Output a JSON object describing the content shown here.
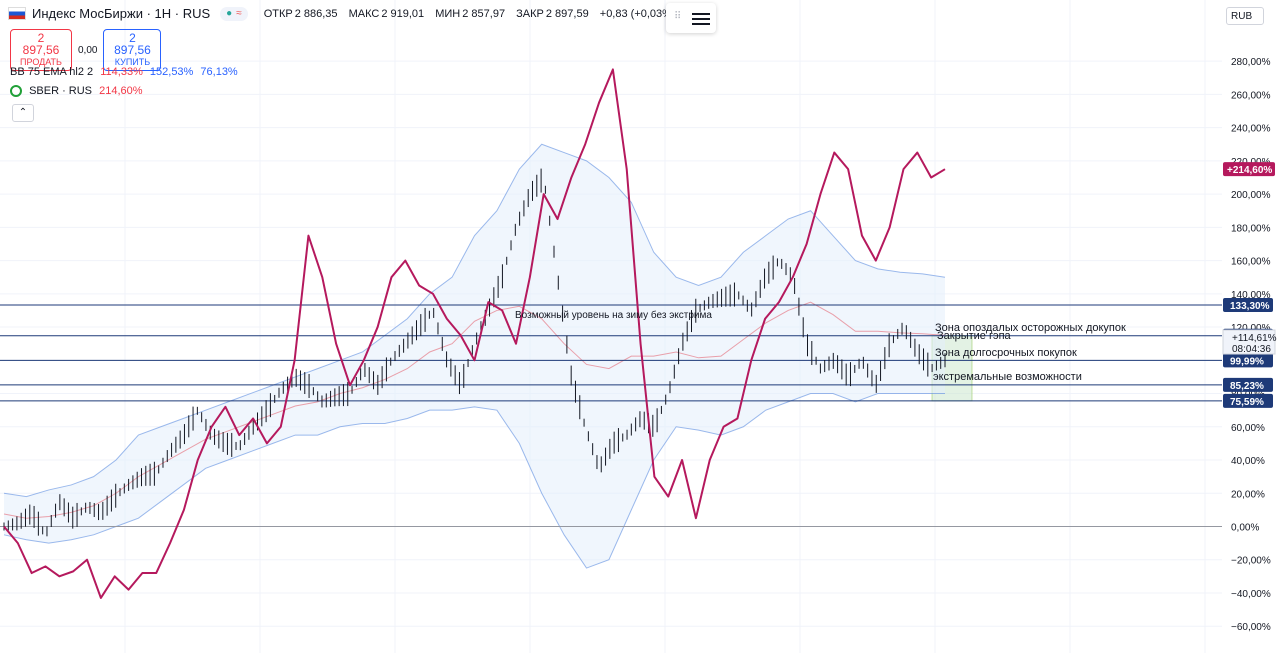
{
  "header": {
    "symbol": "Индекс МосБиржи · 1Н · RUS",
    "open_label": "ОТКР",
    "open": "2 886,35",
    "high_label": "МАКС",
    "high": "2 919,01",
    "low_label": "МИН",
    "low": "2 857,97",
    "close_label": "ЗАКР",
    "close": "2 897,59",
    "change": "+0,83 (+0,03%)"
  },
  "trade": {
    "sell_price": "2 897,56",
    "sell_label": "ПРОДАТЬ",
    "spread": "0,00",
    "buy_price": "2 897,56",
    "buy_label": "КУПИТЬ"
  },
  "indicators": {
    "bb_label": "BB 75 EMA hl2 2",
    "bb_v1": "114,33%",
    "bb_v2": "152,53%",
    "bb_v3": "76,13%",
    "compare_label": "SBER · RUS",
    "compare_value": "214,60%"
  },
  "currency": "RUB",
  "colors": {
    "sber": "#b5195d",
    "bands": "#5b8ce0",
    "basis": "#e57a86",
    "hline": "#1e3a78",
    "zero": "#9598a1",
    "zone": "#c8e6c9"
  },
  "chart_data": {
    "type": "line",
    "y_unit": "%",
    "ylim": [
      -65,
      300
    ],
    "y_ticks": [
      -60,
      -40,
      -20,
      0,
      20,
      40,
      60,
      80,
      100,
      120,
      140,
      160,
      180,
      200,
      220,
      240,
      260,
      280
    ],
    "y_tick_labels": [
      "−60,00%",
      "−40,00%",
      "−20,00%",
      "0,00%",
      "20,00%",
      "40,00%",
      "60,00%",
      "80,00%",
      "100,00%",
      "120,00%",
      "140,00%",
      "160,00%",
      "180,00%",
      "200,00%",
      "220,00%",
      "240,00%",
      "260,00%",
      "280,00%"
    ],
    "grid": true,
    "series": [
      {
        "name": "SBER · RUS",
        "values": [
          0,
          -10,
          -28,
          -24,
          -30,
          -27,
          -20,
          -43,
          -30,
          -38,
          -28,
          -28,
          -10,
          10,
          40,
          60,
          72,
          55,
          65,
          50,
          60,
          100,
          175,
          150,
          110,
          85,
          100,
          120,
          150,
          160,
          145,
          140,
          125,
          115,
          100,
          135,
          130,
          110,
          150,
          200,
          185,
          210,
          230,
          255,
          275,
          215,
          110,
          30,
          18,
          40,
          5,
          40,
          60,
          65,
          100,
          125,
          135,
          150,
          170,
          200,
          225,
          215,
          175,
          160,
          180,
          215,
          225,
          210,
          215
        ],
        "color_key": "sber"
      },
      {
        "values": [
          0,
          2,
          8,
          -5,
          15,
          5,
          12,
          8,
          18,
          25,
          30,
          32,
          45,
          55,
          70,
          55,
          50,
          48,
          60,
          70,
          82,
          90,
          85,
          75,
          78,
          80,
          95,
          85,
          100,
          110,
          120,
          130,
          100,
          85,
          110,
          130,
          150,
          180,
          200,
          210,
          150,
          90,
          60,
          35,
          50,
          55,
          65,
          60,
          80,
          110,
          130,
          135,
          138,
          140,
          130,
          150,
          160,
          150,
          110,
          95,
          100,
          90,
          100,
          85,
          110,
          120,
          105,
          95,
          100
        ]
      },
      {
        "name": "Upper band",
        "values": [
          20,
          18,
          22,
          25,
          30,
          40,
          55,
          60,
          65,
          70,
          75,
          80,
          85,
          90,
          95,
          100,
          105,
          115,
          125,
          140,
          150,
          175,
          190,
          215,
          230,
          225,
          220,
          210,
          195,
          165,
          150,
          145,
          150,
          165,
          175,
          185,
          190,
          175,
          160,
          155,
          153,
          152,
          150
        ]
      },
      {
        "name": "Lower band",
        "values": [
          -5,
          -8,
          -10,
          -8,
          -5,
          0,
          5,
          15,
          25,
          35,
          40,
          45,
          50,
          55,
          55,
          60,
          62,
          62,
          65,
          70,
          70,
          72,
          70,
          50,
          20,
          -5,
          -25,
          -20,
          10,
          40,
          60,
          58,
          55,
          60,
          70,
          75,
          80,
          80,
          75,
          80,
          80,
          80,
          80
        ]
      }
    ],
    "levels": [
      {
        "value": 133.3,
        "label": "133,30%"
      },
      {
        "value": 114.79,
        "label": "114,79%"
      },
      {
        "value": 99.99,
        "label": "99,99%"
      },
      {
        "value": 85.23,
        "label": "85,23%"
      },
      {
        "value": 75.59,
        "label": "75,59%"
      }
    ],
    "sber_last_label": "+214,60%",
    "price_tag": {
      "value": "+114,61%",
      "time": "08:04:36"
    },
    "annotations": [
      "Возможный уровень на зиму без экстрима",
      "Зона опоздалых осторожных докупок",
      "Закрытие гэпа",
      "Зона долгосрочных покупок",
      "экстремальные возможности"
    ]
  }
}
